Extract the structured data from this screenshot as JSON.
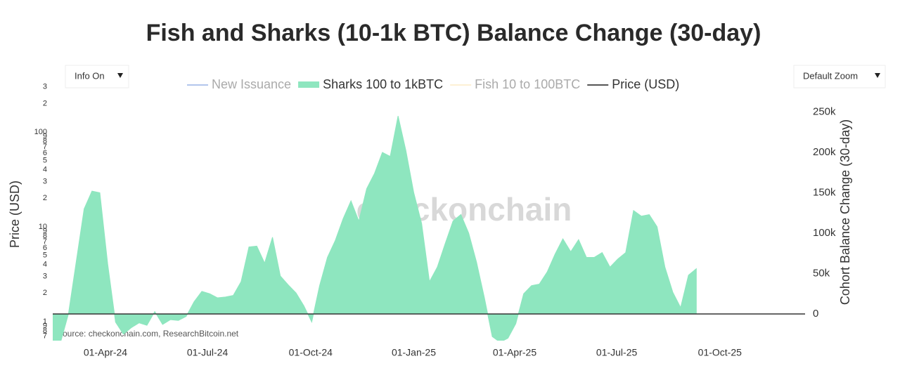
{
  "chart_data": {
    "type": "area",
    "title": "Fish and Sharks (10-1k BTC) Balance Change (30-day)",
    "controls": [
      "Info On",
      "Default Zoom"
    ],
    "watermark": "checkonchain",
    "source": "Source: checkonchain.com, ResearchBitcoin.net",
    "ylabel": "Price (USD)",
    "y2label": "Cohort Balance Change (30-day)",
    "ylog": true,
    "xlim": [
      "2024-02-14",
      "2025-12-16"
    ],
    "xticks": [
      {
        "value": "2024-04-01",
        "label": "01-Apr-24"
      },
      {
        "value": "2024-07-01",
        "label": "01-Jul-24"
      },
      {
        "value": "2024-10-01",
        "label": "01-Oct-24"
      },
      {
        "value": "2025-01-01",
        "label": "01-Jan-25"
      },
      {
        "value": "2025-04-01",
        "label": "01-Apr-25"
      },
      {
        "value": "2025-07-01",
        "label": "01-Jul-25"
      },
      {
        "value": "2025-10-01",
        "label": "01-Oct-25"
      }
    ],
    "ylim": [
      0.63,
      288
    ],
    "yticks": [
      {
        "value": 0.7,
        "label": "7"
      },
      {
        "value": 0.8,
        "label": "8"
      },
      {
        "value": 0.9,
        "label": "9"
      },
      1,
      2,
      3,
      4,
      5,
      6,
      7,
      8,
      9,
      10,
      {
        "value": 20,
        "label": "2"
      },
      {
        "value": 30,
        "label": "3"
      },
      {
        "value": 40,
        "label": "4"
      },
      {
        "value": 50,
        "label": "5"
      },
      {
        "value": 60,
        "label": "6"
      },
      {
        "value": 70,
        "label": "7"
      },
      {
        "value": 80,
        "label": "8"
      },
      {
        "value": 90,
        "label": "9"
      },
      100,
      {
        "value": 200,
        "label": "2"
      },
      {
        "value": 300,
        "label": "3"
      }
    ],
    "y2lim": [
      -33000,
      279000
    ],
    "y2ticks": [
      0,
      {
        "value": 50000,
        "label": "50k"
      },
      {
        "value": 100000,
        "label": "100k"
      },
      {
        "value": 150000,
        "label": "150k"
      },
      {
        "value": 200000,
        "label": "200k"
      },
      {
        "value": 250000,
        "label": "250k"
      }
    ],
    "x": [
      "2024-02-14",
      "2024-02-21",
      "2024-02-28",
      "2024-03-06",
      "2024-03-13",
      "2024-03-20",
      "2024-03-27",
      "2024-04-03",
      "2024-04-10",
      "2024-04-17",
      "2024-04-24",
      "2024-05-01",
      "2024-05-08",
      "2024-05-15",
      "2024-05-22",
      "2024-05-29",
      "2024-06-05",
      "2024-06-12",
      "2024-06-19",
      "2024-06-26",
      "2024-07-03",
      "2024-07-10",
      "2024-07-17",
      "2024-07-24",
      "2024-07-31",
      "2024-08-07",
      "2024-08-14",
      "2024-08-21",
      "2024-08-28",
      "2024-09-04",
      "2024-09-11",
      "2024-09-18",
      "2024-09-25",
      "2024-10-02",
      "2024-10-09",
      "2024-10-16",
      "2024-10-23",
      "2024-10-30",
      "2024-11-06",
      "2024-11-13",
      "2024-11-20",
      "2024-11-27",
      "2024-12-04",
      "2024-12-11",
      "2024-12-18",
      "2024-12-25",
      "2025-01-01",
      "2025-01-08",
      "2025-01-15",
      "2025-01-22",
      "2025-01-29",
      "2025-02-05",
      "2025-02-12",
      "2025-02-19",
      "2025-02-26",
      "2025-03-05",
      "2025-03-12",
      "2025-03-19",
      "2025-03-26",
      "2025-04-02",
      "2025-04-09",
      "2025-04-16",
      "2025-04-23",
      "2025-04-30",
      "2025-05-07",
      "2025-05-14",
      "2025-05-21",
      "2025-05-28",
      "2025-06-04",
      "2025-06-11",
      "2025-06-18",
      "2025-06-25",
      "2025-07-02",
      "2025-07-09",
      "2025-07-16",
      "2025-07-23",
      "2025-07-30",
      "2025-08-06",
      "2025-08-13",
      "2025-08-20",
      "2025-08-27",
      "2025-09-03",
      "2025-09-10"
    ],
    "series": [
      {
        "name": "New Issuance",
        "color": "#7f9fe0",
        "visible": false,
        "values": null
      },
      {
        "name": "Sharks 100 to 1kBTC",
        "color": "#8ee6bf",
        "visible": true,
        "axis": "y2",
        "values": [
          -35000,
          -35000,
          0,
          65000,
          130000,
          152000,
          150000,
          62000,
          -10000,
          -25000,
          -17000,
          -11000,
          -14000,
          3000,
          -13000,
          -7000,
          -8000,
          -3000,
          15000,
          28000,
          25000,
          20000,
          21000,
          23000,
          40000,
          83000,
          84000,
          63000,
          95000,
          47000,
          36000,
          26000,
          10000,
          -10000,
          35000,
          70000,
          91000,
          118000,
          140000,
          115000,
          155000,
          174000,
          200000,
          195000,
          245000,
          202000,
          150000,
          112000,
          40000,
          58000,
          87000,
          115000,
          123000,
          100000,
          64000,
          20000,
          -28000,
          -35000,
          -30000,
          -12000,
          25000,
          35000,
          37000,
          52000,
          74000,
          93000,
          77000,
          92000,
          70000,
          70000,
          76000,
          58000,
          68000,
          76000,
          128000,
          121000,
          123000,
          108000,
          58000,
          27000,
          8000,
          48000,
          56000
        ]
      },
      {
        "name": "Fish 10 to 100BTC",
        "color": "#fde7b8",
        "visible": false,
        "values": null
      },
      {
        "name": "Price (USD)",
        "color": "#555555",
        "visible": true,
        "values": null
      }
    ]
  }
}
